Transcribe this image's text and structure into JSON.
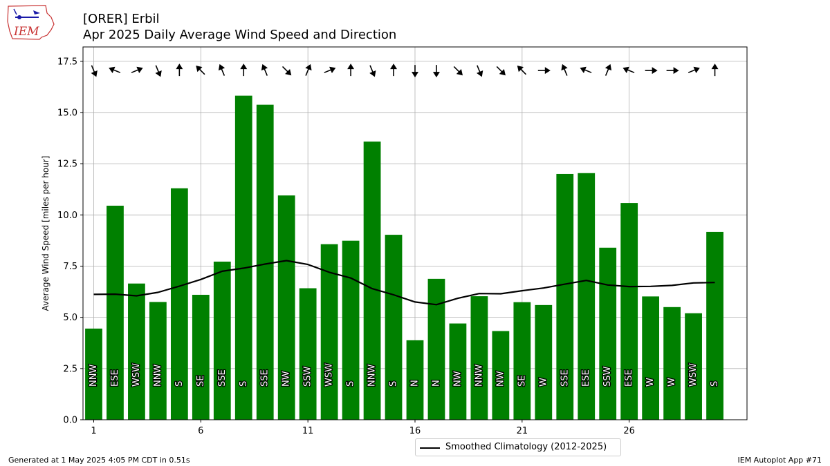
{
  "header": {
    "title": "[ORER] Erbil",
    "subtitle": "Apr 2025 Daily Average Wind Speed and Direction",
    "logo_text": "IEM"
  },
  "footer": {
    "generated": "Generated at 1 May 2025 4:05 PM CDT in 0.51s",
    "app": "IEM Autoplot App #71"
  },
  "colors": {
    "bars": "#008000",
    "climatology": "#000000",
    "grid": "#b0b0b0"
  },
  "chart_data": {
    "type": "bar",
    "ylabel": "Average Wind Speed [miles per hour]",
    "ylim": [
      0,
      18.2
    ],
    "xlim": [
      0.5,
      31.5
    ],
    "yticks": [
      0.0,
      2.5,
      5.0,
      7.5,
      10.0,
      12.5,
      15.0,
      17.5
    ],
    "ytick_labels": [
      "0.0",
      "2.5",
      "5.0",
      "7.5",
      "10.0",
      "12.5",
      "15.0",
      "17.5"
    ],
    "xticks": [
      1,
      6,
      11,
      16,
      21,
      26
    ],
    "xtick_labels": [
      "1",
      "6",
      "11",
      "16",
      "21",
      "26"
    ],
    "grid": true,
    "legend_position": "below-center",
    "days": [
      1,
      2,
      3,
      4,
      5,
      6,
      7,
      8,
      9,
      10,
      11,
      12,
      13,
      14,
      15,
      16,
      17,
      18,
      19,
      20,
      21,
      22,
      23,
      24,
      25,
      26,
      27,
      28,
      29,
      30
    ],
    "values": [
      4.45,
      10.45,
      6.65,
      5.75,
      11.3,
      6.1,
      7.72,
      15.82,
      15.38,
      10.95,
      6.42,
      8.57,
      8.74,
      13.58,
      9.03,
      3.88,
      6.88,
      4.7,
      6.03,
      4.33,
      5.74,
      5.6,
      12.0,
      12.04,
      8.4,
      10.58,
      6.02,
      5.5,
      5.2,
      9.17
    ],
    "directions": [
      "NNW",
      "ESE",
      "WSW",
      "NNW",
      "S",
      "SE",
      "SSE",
      "S",
      "SSE",
      "NW",
      "SSW",
      "WSW",
      "S",
      "NNW",
      "S",
      "N",
      "N",
      "NW",
      "NNW",
      "NW",
      "SE",
      "W",
      "SSE",
      "ESE",
      "SSW",
      "ESE",
      "W",
      "W",
      "WSW",
      "S"
    ],
    "series": [
      {
        "name": "Smoothed Climatology (2012-2025)",
        "type": "line",
        "x": [
          1,
          2,
          3,
          4,
          5,
          6,
          7,
          8,
          9,
          10,
          11,
          12,
          13,
          14,
          15,
          16,
          17,
          18,
          19,
          20,
          21,
          22,
          23,
          24,
          25,
          26,
          27,
          28,
          29,
          30
        ],
        "values": [
          6.12,
          6.13,
          6.05,
          6.22,
          6.52,
          6.85,
          7.25,
          7.4,
          7.6,
          7.77,
          7.58,
          7.2,
          6.92,
          6.4,
          6.1,
          5.75,
          5.62,
          5.93,
          6.16,
          6.15,
          6.3,
          6.43,
          6.62,
          6.8,
          6.58,
          6.5,
          6.51,
          6.56,
          6.68,
          6.7
        ]
      }
    ]
  }
}
